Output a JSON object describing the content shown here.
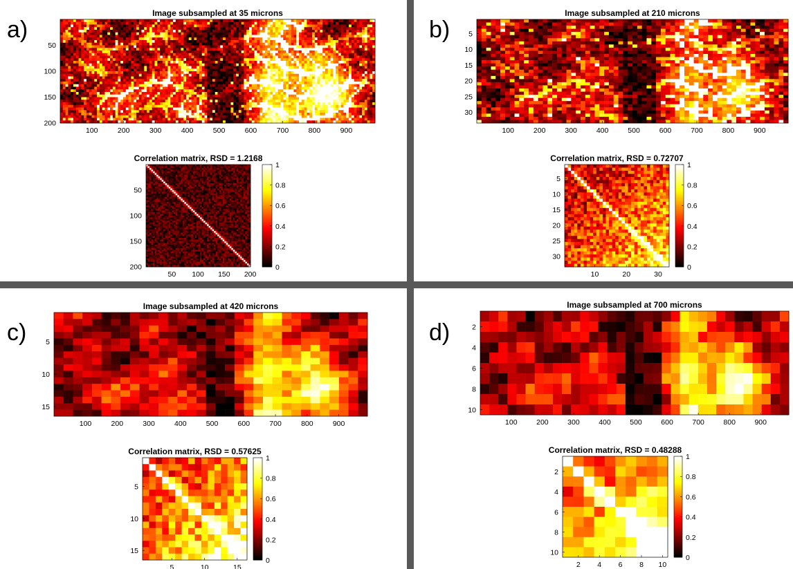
{
  "panels": [
    {
      "letter": "a)",
      "image": {
        "title": "Image subsampled at 35 microns",
        "rows": 200,
        "cols": 990,
        "xticks": [
          100,
          200,
          300,
          400,
          500,
          600,
          700,
          800,
          900
        ],
        "yticks": [
          50,
          100,
          150,
          200
        ],
        "grid": [
          40,
          120
        ],
        "brightness": 0.28,
        "contrast": 3.0,
        "cell_net": true
      },
      "corr": {
        "title": "Correlation matrix, RSD = 1.2168",
        "n": 200,
        "xticks": [
          50,
          100,
          150,
          200
        ],
        "yticks": [
          50,
          100,
          150,
          200
        ],
        "grid": 60,
        "base": 0.12,
        "spread": 0.12,
        "trend": 0.0,
        "colorbar_ticks": [
          0,
          0.2,
          0.4,
          0.6,
          0.8,
          1
        ]
      }
    },
    {
      "letter": "b)",
      "image": {
        "title": "Image subsampled at 210 microns",
        "rows": 33,
        "cols": 990,
        "xticks": [
          100,
          200,
          300,
          400,
          500,
          600,
          700,
          800,
          900
        ],
        "yticks": [
          5,
          10,
          15,
          20,
          25,
          30
        ],
        "grid": [
          33,
          66
        ],
        "brightness": 0.35,
        "contrast": 1.9,
        "cell_net": true
      },
      "corr": {
        "title": "Correlation matrix, RSD = 0.72707",
        "n": 33,
        "xticks": [
          10,
          20,
          30
        ],
        "yticks": [
          5,
          10,
          15,
          20,
          25,
          30
        ],
        "grid": 33,
        "base": 0.28,
        "spread": 0.22,
        "trend": 0.35,
        "colorbar_ticks": [
          0,
          0.2,
          0.4,
          0.6,
          0.8,
          1
        ]
      }
    },
    {
      "letter": "c)",
      "image": {
        "title": "Image subsampled at 420 microns",
        "rows": 16,
        "cols": 990,
        "xticks": [
          100,
          200,
          300,
          400,
          500,
          600,
          700,
          800,
          900
        ],
        "yticks": [
          5,
          10,
          15
        ],
        "grid": [
          16,
          33
        ],
        "brightness": 0.35,
        "contrast": 1.7,
        "cell_net": false
      },
      "corr": {
        "title": "Correlation matrix, RSD = 0.57625",
        "n": 16,
        "xticks": [
          5,
          10,
          15
        ],
        "yticks": [
          5,
          10,
          15
        ],
        "grid": 16,
        "base": 0.35,
        "spread": 0.2,
        "trend": 0.45,
        "colorbar_ticks": [
          0,
          0.2,
          0.4,
          0.6,
          0.8,
          1
        ]
      }
    },
    {
      "letter": "d)",
      "image": {
        "title": "Image subsampled at 700 microns",
        "rows": 10,
        "cols": 990,
        "xticks": [
          100,
          200,
          300,
          400,
          500,
          600,
          700,
          800,
          900
        ],
        "yticks": [
          2,
          4,
          6,
          8,
          10
        ],
        "grid": [
          10,
          34
        ],
        "brightness": 0.38,
        "contrast": 1.6,
        "cell_net": false
      },
      "corr": {
        "title": "Correlation matrix, RSD = 0.48288",
        "n": 10,
        "xticks": [
          2,
          4,
          6,
          8,
          10
        ],
        "yticks": [
          2,
          4,
          6,
          8,
          10
        ],
        "grid": 10,
        "base": 0.4,
        "spread": 0.15,
        "trend": 0.5,
        "colorbar_ticks": [
          0,
          0.2,
          0.4,
          0.6,
          0.8,
          1
        ]
      }
    }
  ],
  "colors": {
    "divider": "#595959",
    "colormap": "hot"
  },
  "chart_data": [
    {
      "type": "heatmap",
      "title": "Image subsampled at 35 microns",
      "ylim": [
        200,
        1
      ],
      "xlim": [
        1,
        990
      ]
    },
    {
      "type": "heatmap",
      "title": "Correlation matrix, RSD = 1.2168",
      "xlim": [
        1,
        200
      ],
      "ylim": [
        200,
        1
      ],
      "colorbar": [
        0,
        1
      ]
    },
    {
      "type": "heatmap",
      "title": "Image subsampled at 210 microns",
      "ylim": [
        33,
        1
      ],
      "xlim": [
        1,
        990
      ]
    },
    {
      "type": "heatmap",
      "title": "Correlation matrix, RSD = 0.72707",
      "xlim": [
        1,
        33
      ],
      "ylim": [
        33,
        1
      ],
      "colorbar": [
        0,
        1
      ]
    },
    {
      "type": "heatmap",
      "title": "Image subsampled at 420 microns",
      "ylim": [
        16,
        1
      ],
      "xlim": [
        1,
        990
      ]
    },
    {
      "type": "heatmap",
      "title": "Correlation matrix, RSD = 0.57625",
      "xlim": [
        1,
        16
      ],
      "ylim": [
        16,
        1
      ],
      "colorbar": [
        0,
        1
      ]
    },
    {
      "type": "heatmap",
      "title": "Image subsampled at 700 microns",
      "ylim": [
        10,
        1
      ],
      "xlim": [
        1,
        990
      ]
    },
    {
      "type": "heatmap",
      "title": "Correlation matrix, RSD = 0.48288",
      "xlim": [
        1,
        10
      ],
      "ylim": [
        10,
        1
      ],
      "colorbar": [
        0,
        1
      ]
    }
  ]
}
